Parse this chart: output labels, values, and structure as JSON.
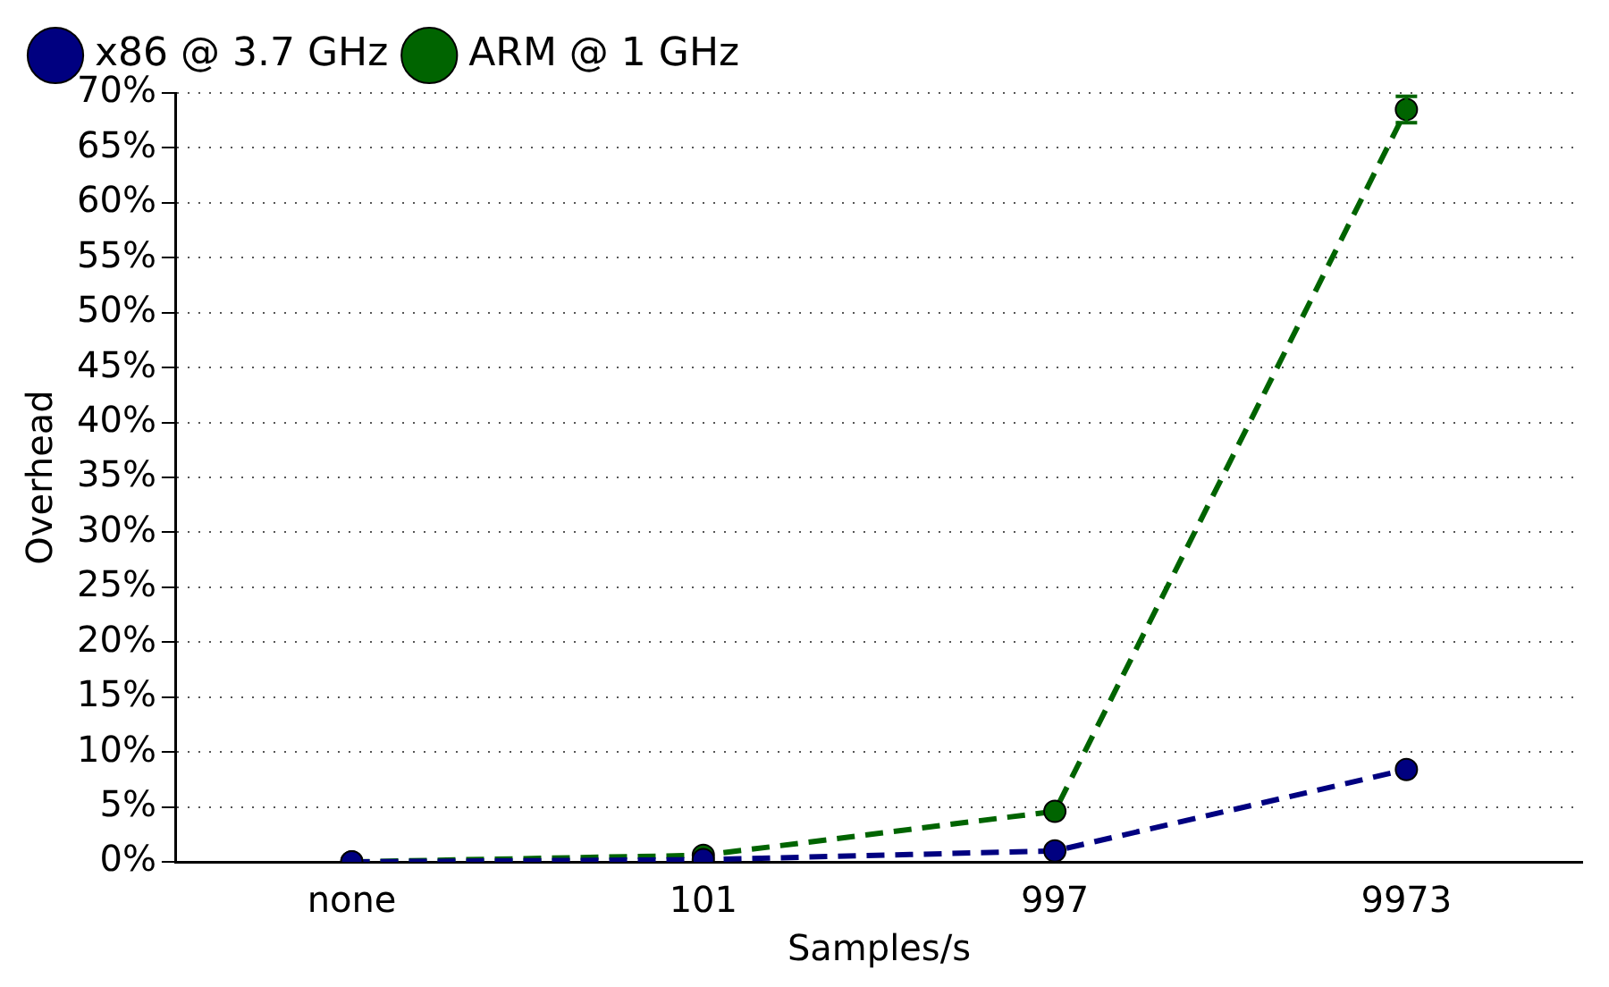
{
  "chart_data": {
    "type": "line",
    "xlabel": "Samples/s",
    "ylabel": "Overhead",
    "categories": [
      "none",
      "101",
      "997",
      "9973"
    ],
    "series": [
      {
        "name": "x86 @ 3.7 GHz",
        "color": "#000080",
        "values": [
          0,
          0.2,
          1.0,
          8.4
        ]
      },
      {
        "name": "ARM @ 1 GHz",
        "color": "#006400",
        "values": [
          0,
          0.6,
          4.6,
          68.5
        ],
        "errors": [
          null,
          null,
          null,
          1.2
        ]
      }
    ],
    "ylim": [
      0,
      70
    ],
    "yticks": [
      {
        "value": 0,
        "label": "0%"
      },
      {
        "value": 5,
        "label": "5%"
      },
      {
        "value": 10,
        "label": "10%"
      },
      {
        "value": 15,
        "label": "15%"
      },
      {
        "value": 20,
        "label": "20%"
      },
      {
        "value": 25,
        "label": "25%"
      },
      {
        "value": 30,
        "label": "30%"
      },
      {
        "value": 35,
        "label": "35%"
      },
      {
        "value": 40,
        "label": "40%"
      },
      {
        "value": 45,
        "label": "45%"
      },
      {
        "value": 50,
        "label": "50%"
      },
      {
        "value": 55,
        "label": "55%"
      },
      {
        "value": 60,
        "label": "60%"
      },
      {
        "value": 65,
        "label": "65%"
      },
      {
        "value": 70,
        "label": "70%"
      }
    ],
    "grid": "y",
    "legend": "top left",
    "marker": "circle",
    "line_style": "dashed"
  }
}
